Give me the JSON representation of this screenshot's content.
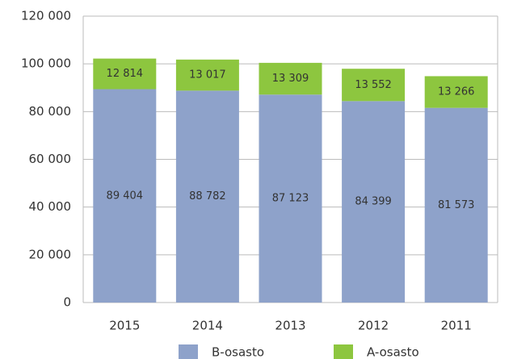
{
  "chart_data": {
    "type": "stacked_bar",
    "categories": [
      "2015",
      "2014",
      "2013",
      "2012",
      "2011"
    ],
    "series": [
      {
        "name": "B-osasto",
        "color": "#8ea2ca",
        "values": [
          89404,
          88782,
          87123,
          84399,
          81573
        ],
        "value_labels": [
          "89 404",
          "88 782",
          "87 123",
          "84 399",
          "81 573"
        ]
      },
      {
        "name": "A-osasto",
        "color": "#8dc63f",
        "values": [
          12814,
          13017,
          13309,
          13552,
          13266
        ],
        "value_labels": [
          "12 814",
          "13 017",
          "13 309",
          "13 552",
          "13 266"
        ]
      }
    ],
    "ylim": [
      0,
      120000
    ],
    "yticks": [
      0,
      {
        "value": 20000,
        "label": "20 000"
      },
      {
        "value": 40000,
        "label": "40 000"
      },
      {
        "value": 60000,
        "label": "60 000"
      },
      {
        "value": 80000,
        "label": "80 000"
      },
      {
        "value": 100000,
        "label": "100 000"
      },
      {
        "value": 120000,
        "label": "120 000"
      }
    ],
    "grid": true,
    "legend": "bottom"
  }
}
